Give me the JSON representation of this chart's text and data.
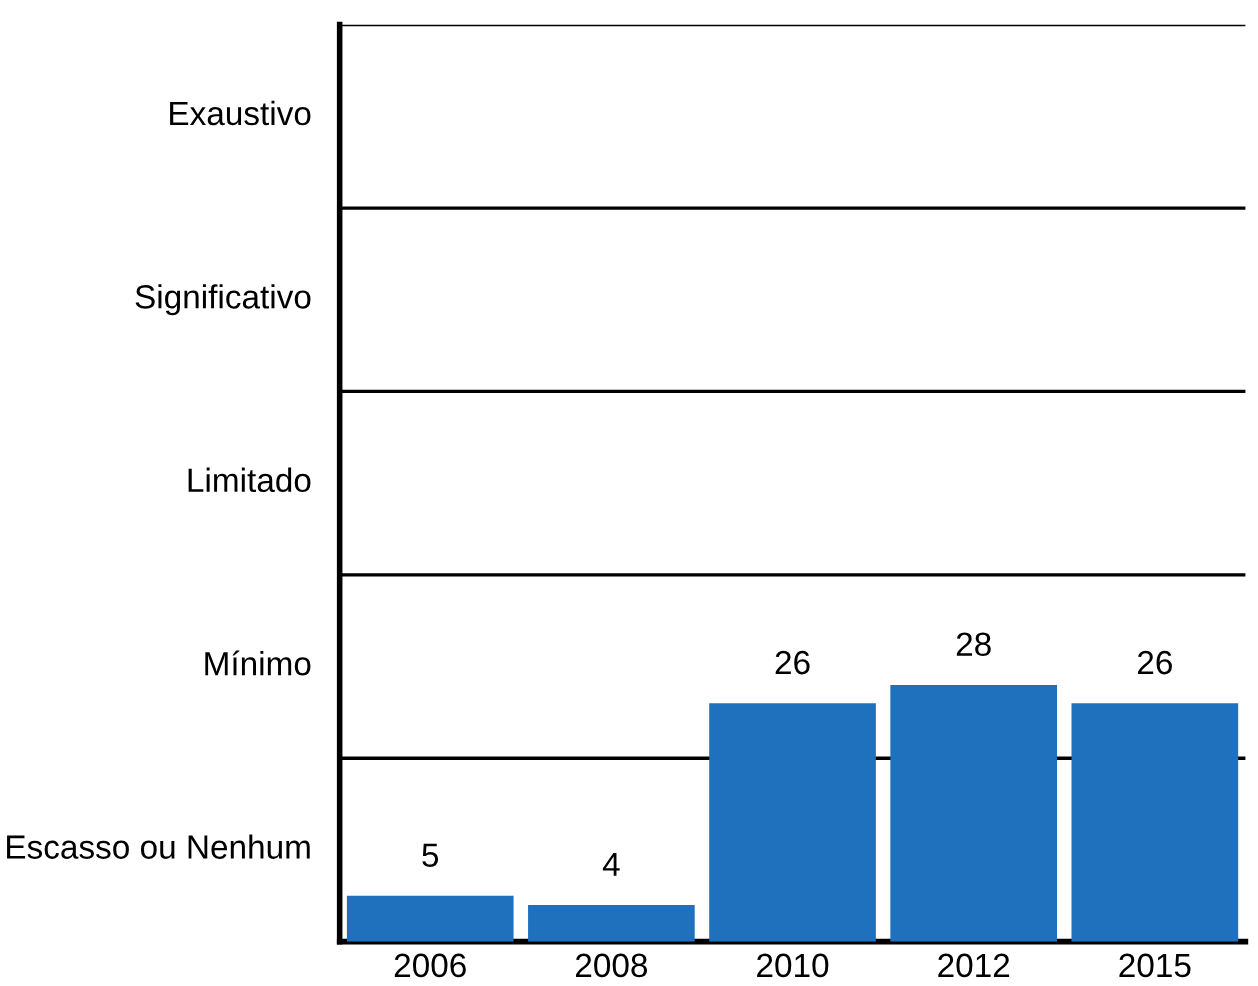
{
  "chart_data": {
    "type": "bar",
    "categories": [
      "2006",
      "2008",
      "2010",
      "2012",
      "2015"
    ],
    "values": [
      5,
      4,
      26,
      28,
      26
    ],
    "color": "#1f70bd",
    "data_labels": true,
    "ylim": [
      0,
      100
    ],
    "annotations": [
      "Escasso ou Nenhum",
      "Mínimo",
      "Limitado",
      "Significativo",
      "Exaustivo"
    ],
    "ref_lines": [
      {
        "axis": "y",
        "value": 20,
        "color": "#000000"
      },
      {
        "axis": "y",
        "value": 40,
        "color": "#000000"
      },
      {
        "axis": "y",
        "value": 60,
        "color": "#000000"
      },
      {
        "axis": "y",
        "value": 80,
        "color": "#000000"
      },
      {
        "axis": "y",
        "value": 100,
        "color": "#000000"
      }
    ],
    "grid": false,
    "legend": false
  }
}
